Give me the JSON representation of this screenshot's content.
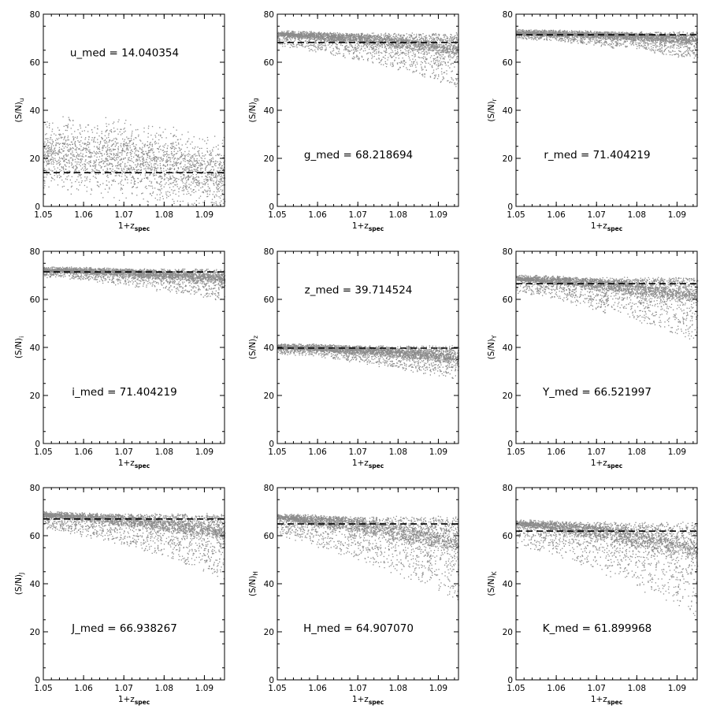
{
  "colors": {
    "points": "#8c8c8c",
    "axes": "#000000",
    "median_line": "#000000"
  },
  "axis_labels": {
    "x_main": "1+z",
    "x_sub": "spec"
  },
  "chart_data": [
    {
      "type": "scatter",
      "band": "u",
      "ylabel_main": "(S/N)",
      "ylabel_sub": "u",
      "annotation": "u_med = 14.040354",
      "median": 14.040354,
      "xlim": [
        1.05,
        1.095
      ],
      "ylim": [
        0,
        80
      ],
      "xticks": [
        "1.05",
        "1.06",
        "1.07",
        "1.08",
        "1.09"
      ],
      "yticks": [
        "0",
        "20",
        "40",
        "60",
        "80"
      ],
      "distribution": {
        "plateau": 22,
        "high_z_level": 12,
        "spread": 10,
        "max": 46
      }
    },
    {
      "type": "scatter",
      "band": "g",
      "ylabel_main": "(S/N)",
      "ylabel_sub": "g",
      "annotation": "g_med = 68.218694",
      "median": 68.218694,
      "xlim": [
        1.05,
        1.095
      ],
      "ylim": [
        0,
        80
      ],
      "xticks": [
        "1.05",
        "1.06",
        "1.07",
        "1.08",
        "1.09"
      ],
      "yticks": [
        "0",
        "20",
        "40",
        "60",
        "80"
      ],
      "distribution": {
        "plateau": 72.5,
        "high_z_level": 64,
        "spread": 5,
        "max": 73.5
      }
    },
    {
      "type": "scatter",
      "band": "r",
      "ylabel_main": "(S/N)",
      "ylabel_sub": "r",
      "annotation": "r_med = 71.404219",
      "median": 71.404219,
      "xlim": [
        1.05,
        1.095
      ],
      "ylim": [
        0,
        80
      ],
      "xticks": [
        "1.05",
        "1.06",
        "1.07",
        "1.08",
        "1.09"
      ],
      "yticks": [
        "0",
        "20",
        "40",
        "60",
        "80"
      ],
      "distribution": {
        "plateau": 73,
        "high_z_level": 69,
        "spread": 2.5,
        "max": 74
      }
    },
    {
      "type": "scatter",
      "band": "i",
      "ylabel_main": "(S/N)",
      "ylabel_sub": "i",
      "annotation": "i_med = 71.404219",
      "median": 71.404219,
      "xlim": [
        1.05,
        1.095
      ],
      "ylim": [
        0,
        80
      ],
      "xticks": [
        "1.05",
        "1.06",
        "1.07",
        "1.08",
        "1.09"
      ],
      "yticks": [
        "0",
        "20",
        "40",
        "60",
        "80"
      ],
      "distribution": {
        "plateau": 73,
        "high_z_level": 68,
        "spread": 3,
        "max": 74
      }
    },
    {
      "type": "scatter",
      "band": "z",
      "ylabel_main": "(S/N)",
      "ylabel_sub": "z",
      "annotation": "z_med = 39.714524",
      "median": 39.714524,
      "xlim": [
        1.05,
        1.095
      ],
      "ylim": [
        0,
        80
      ],
      "xticks": [
        "1.05",
        "1.06",
        "1.07",
        "1.08",
        "1.09"
      ],
      "yticks": [
        "0",
        "20",
        "40",
        "60",
        "80"
      ],
      "distribution": {
        "plateau": 41,
        "high_z_level": 35,
        "spread": 3,
        "max": 42.5
      }
    },
    {
      "type": "scatter",
      "band": "Y",
      "ylabel_main": "(S/N)",
      "ylabel_sub": "Y",
      "annotation": "Y_med = 66.521997",
      "median": 66.521997,
      "xlim": [
        1.05,
        1.095
      ],
      "ylim": [
        0,
        80
      ],
      "xticks": [
        "1.05",
        "1.06",
        "1.07",
        "1.08",
        "1.09"
      ],
      "yticks": [
        "0",
        "20",
        "40",
        "60",
        "80"
      ],
      "distribution": {
        "plateau": 69.5,
        "high_z_level": 60,
        "spread": 6,
        "max": 71.5
      }
    },
    {
      "type": "scatter",
      "band": "J",
      "ylabel_main": "(S/N)",
      "ylabel_sub": "J",
      "annotation": "J_med = 66.938267",
      "median": 66.938267,
      "xlim": [
        1.05,
        1.095
      ],
      "ylim": [
        0,
        80
      ],
      "xticks": [
        "1.05",
        "1.06",
        "1.07",
        "1.08",
        "1.09"
      ],
      "yticks": [
        "0",
        "20",
        "40",
        "60",
        "80"
      ],
      "distribution": {
        "plateau": 69.5,
        "high_z_level": 60,
        "spread": 6,
        "max": 71.5
      }
    },
    {
      "type": "scatter",
      "band": "H",
      "ylabel_main": "(S/N)",
      "ylabel_sub": "H",
      "annotation": "H_med = 64.907070",
      "median": 64.90707,
      "xlim": [
        1.05,
        1.095
      ],
      "ylim": [
        0,
        80
      ],
      "xticks": [
        "1.05",
        "1.06",
        "1.07",
        "1.08",
        "1.09"
      ],
      "yticks": [
        "0",
        "20",
        "40",
        "60",
        "80"
      ],
      "distribution": {
        "plateau": 68.5,
        "high_z_level": 55,
        "spread": 8,
        "max": 71.5
      }
    },
    {
      "type": "scatter",
      "band": "K",
      "ylabel_main": "(S/N)",
      "ylabel_sub": "K",
      "annotation": "K_med = 61.899968",
      "median": 61.899968,
      "xlim": [
        1.05,
        1.095
      ],
      "ylim": [
        0,
        80
      ],
      "xticks": [
        "1.05",
        "1.06",
        "1.07",
        "1.08",
        "1.09"
      ],
      "yticks": [
        "0",
        "20",
        "40",
        "60",
        "80"
      ],
      "distribution": {
        "plateau": 66,
        "high_z_level": 52,
        "spread": 9,
        "max": 71.5
      }
    }
  ]
}
